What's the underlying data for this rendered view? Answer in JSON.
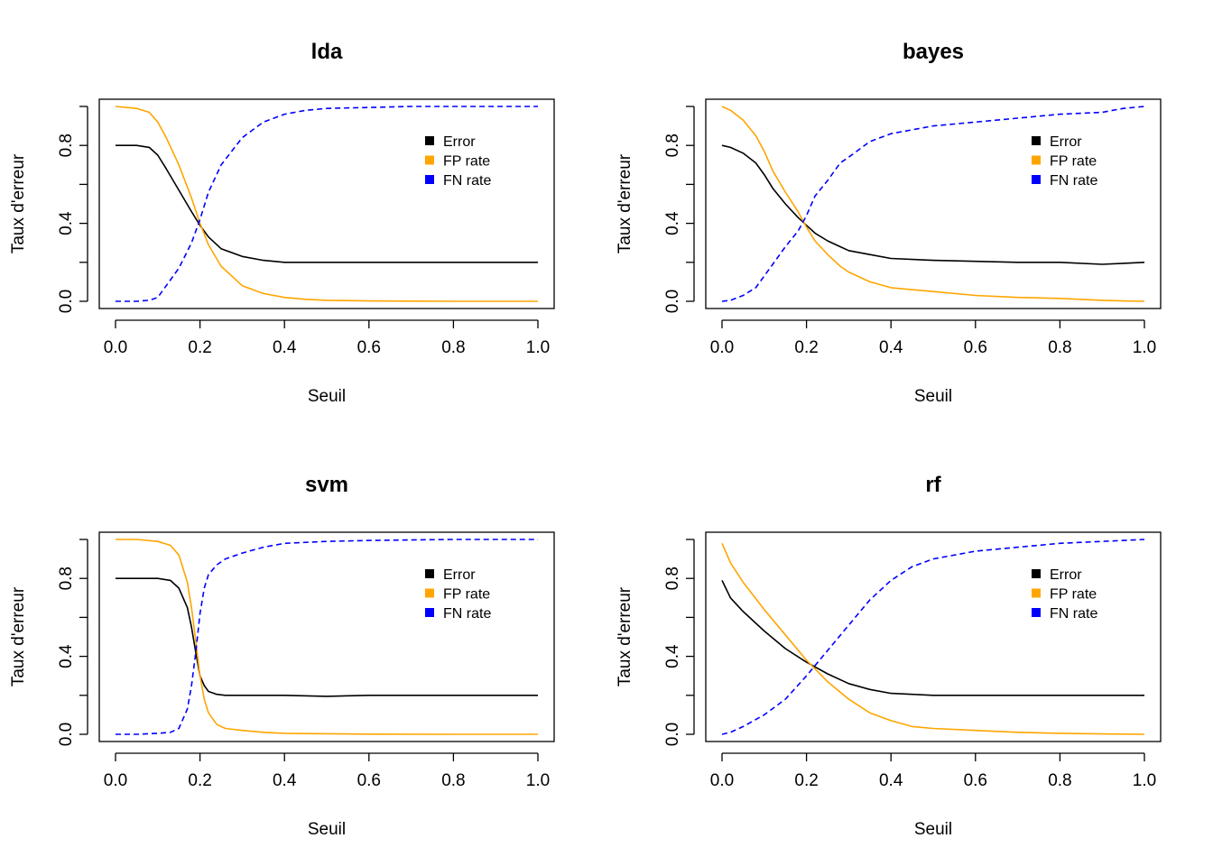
{
  "chart_data": [
    {
      "type": "line",
      "title": "lda",
      "xlabel": "Seuil",
      "ylabel": "Taux d'erreur",
      "xlim": [
        0,
        1
      ],
      "ylim": [
        0,
        1
      ],
      "xticks": [
        "0.0",
        "0.2",
        "0.4",
        "0.6",
        "0.8",
        "1.0"
      ],
      "yticks": [
        "0.0",
        "0.4",
        "0.8"
      ],
      "grid": false,
      "legend_position": "top-right",
      "x": [
        0,
        0.05,
        0.08,
        0.1,
        0.12,
        0.15,
        0.18,
        0.2,
        0.22,
        0.25,
        0.3,
        0.35,
        0.4,
        0.45,
        0.5,
        0.6,
        0.7,
        0.8,
        0.9,
        1.0
      ],
      "series": [
        {
          "name": "Error",
          "color": "#000000",
          "dash": "solid",
          "values": [
            0.8,
            0.8,
            0.79,
            0.75,
            0.68,
            0.57,
            0.46,
            0.39,
            0.33,
            0.27,
            0.23,
            0.21,
            0.2,
            0.2,
            0.2,
            0.2,
            0.2,
            0.2,
            0.2,
            0.2
          ]
        },
        {
          "name": "FP rate",
          "color": "#FFA500",
          "dash": "solid",
          "values": [
            1.0,
            0.99,
            0.97,
            0.92,
            0.84,
            0.7,
            0.53,
            0.4,
            0.29,
            0.18,
            0.08,
            0.04,
            0.02,
            0.01,
            0.005,
            0.002,
            0.001,
            0.0,
            0.0,
            0.0
          ]
        },
        {
          "name": "FN rate",
          "color": "#0000FF",
          "dash": "dashed",
          "values": [
            0.0,
            0.0,
            0.005,
            0.02,
            0.08,
            0.17,
            0.3,
            0.42,
            0.56,
            0.7,
            0.84,
            0.92,
            0.96,
            0.98,
            0.99,
            0.995,
            1.0,
            1.0,
            1.0,
            1.0
          ]
        }
      ]
    },
    {
      "type": "line",
      "title": "bayes",
      "xlabel": "Seuil",
      "ylabel": "Taux d'erreur",
      "xlim": [
        0,
        1
      ],
      "ylim": [
        0,
        1
      ],
      "xticks": [
        "0.0",
        "0.2",
        "0.4",
        "0.6",
        "0.8",
        "1.0"
      ],
      "yticks": [
        "0.0",
        "0.4",
        "0.8"
      ],
      "grid": false,
      "legend_position": "top-right",
      "x": [
        0,
        0.02,
        0.05,
        0.08,
        0.1,
        0.12,
        0.15,
        0.18,
        0.2,
        0.22,
        0.25,
        0.28,
        0.3,
        0.35,
        0.4,
        0.5,
        0.6,
        0.7,
        0.8,
        0.9,
        0.95,
        1.0
      ],
      "series": [
        {
          "name": "Error",
          "color": "#000000",
          "dash": "solid",
          "values": [
            0.8,
            0.79,
            0.76,
            0.71,
            0.65,
            0.58,
            0.5,
            0.43,
            0.39,
            0.35,
            0.31,
            0.28,
            0.26,
            0.24,
            0.22,
            0.21,
            0.205,
            0.2,
            0.2,
            0.19,
            0.195,
            0.2
          ]
        },
        {
          "name": "FP rate",
          "color": "#FFA500",
          "dash": "solid",
          "values": [
            1.0,
            0.98,
            0.93,
            0.85,
            0.77,
            0.67,
            0.56,
            0.46,
            0.38,
            0.31,
            0.24,
            0.18,
            0.15,
            0.1,
            0.07,
            0.05,
            0.03,
            0.02,
            0.015,
            0.005,
            0.002,
            0.0
          ]
        },
        {
          "name": "FN rate",
          "color": "#0000FF",
          "dash": "dashed",
          "values": [
            0.0,
            0.005,
            0.03,
            0.07,
            0.13,
            0.19,
            0.28,
            0.36,
            0.44,
            0.54,
            0.62,
            0.71,
            0.74,
            0.82,
            0.86,
            0.9,
            0.92,
            0.94,
            0.96,
            0.97,
            0.99,
            1.0
          ]
        }
      ]
    },
    {
      "type": "line",
      "title": "svm",
      "xlabel": "Seuil",
      "ylabel": "Taux d'erreur",
      "xlim": [
        0,
        1
      ],
      "ylim": [
        0,
        1
      ],
      "xticks": [
        "0.0",
        "0.2",
        "0.4",
        "0.6",
        "0.8",
        "1.0"
      ],
      "yticks": [
        "0.0",
        "0.4",
        "0.8"
      ],
      "grid": false,
      "legend_position": "top-right",
      "x": [
        0,
        0.05,
        0.1,
        0.13,
        0.15,
        0.17,
        0.18,
        0.19,
        0.2,
        0.21,
        0.22,
        0.24,
        0.26,
        0.3,
        0.35,
        0.4,
        0.5,
        0.6,
        0.8,
        1.0
      ],
      "series": [
        {
          "name": "Error",
          "color": "#000000",
          "dash": "solid",
          "values": [
            0.8,
            0.8,
            0.8,
            0.79,
            0.75,
            0.65,
            0.55,
            0.42,
            0.3,
            0.25,
            0.22,
            0.205,
            0.2,
            0.2,
            0.2,
            0.2,
            0.195,
            0.2,
            0.2,
            0.2
          ]
        },
        {
          "name": "FP rate",
          "color": "#FFA500",
          "dash": "solid",
          "values": [
            1.0,
            1.0,
            0.99,
            0.97,
            0.92,
            0.78,
            0.65,
            0.48,
            0.3,
            0.18,
            0.11,
            0.05,
            0.03,
            0.02,
            0.01,
            0.005,
            0.003,
            0.001,
            0.0,
            0.0
          ]
        },
        {
          "name": "FN rate",
          "color": "#0000FF",
          "dash": "dashed",
          "values": [
            0.0,
            0.0,
            0.005,
            0.01,
            0.03,
            0.13,
            0.25,
            0.42,
            0.62,
            0.75,
            0.82,
            0.87,
            0.9,
            0.93,
            0.96,
            0.98,
            0.99,
            0.995,
            1.0,
            1.0
          ]
        }
      ]
    },
    {
      "type": "line",
      "title": "rf",
      "xlabel": "Seuil",
      "ylabel": "Taux d'erreur",
      "xlim": [
        0,
        1
      ],
      "ylim": [
        0,
        1
      ],
      "xticks": [
        "0.0",
        "0.2",
        "0.4",
        "0.6",
        "0.8",
        "1.0"
      ],
      "yticks": [
        "0.0",
        "0.4",
        "0.8"
      ],
      "grid": false,
      "legend_position": "top-right",
      "x": [
        0,
        0.02,
        0.05,
        0.1,
        0.15,
        0.2,
        0.25,
        0.3,
        0.35,
        0.4,
        0.45,
        0.5,
        0.6,
        0.7,
        0.8,
        0.9,
        1.0
      ],
      "series": [
        {
          "name": "Error",
          "color": "#000000",
          "dash": "solid",
          "values": [
            0.79,
            0.7,
            0.63,
            0.53,
            0.44,
            0.37,
            0.31,
            0.26,
            0.23,
            0.21,
            0.205,
            0.2,
            0.2,
            0.2,
            0.2,
            0.2,
            0.2
          ]
        },
        {
          "name": "FP rate",
          "color": "#FFA500",
          "dash": "solid",
          "values": [
            0.98,
            0.88,
            0.78,
            0.64,
            0.51,
            0.38,
            0.27,
            0.18,
            0.11,
            0.07,
            0.04,
            0.03,
            0.02,
            0.01,
            0.005,
            0.002,
            0.0
          ]
        },
        {
          "name": "FN rate",
          "color": "#0000FF",
          "dash": "dashed",
          "values": [
            0.0,
            0.01,
            0.04,
            0.1,
            0.18,
            0.3,
            0.43,
            0.56,
            0.69,
            0.79,
            0.86,
            0.9,
            0.94,
            0.96,
            0.98,
            0.99,
            1.0
          ]
        }
      ]
    }
  ]
}
